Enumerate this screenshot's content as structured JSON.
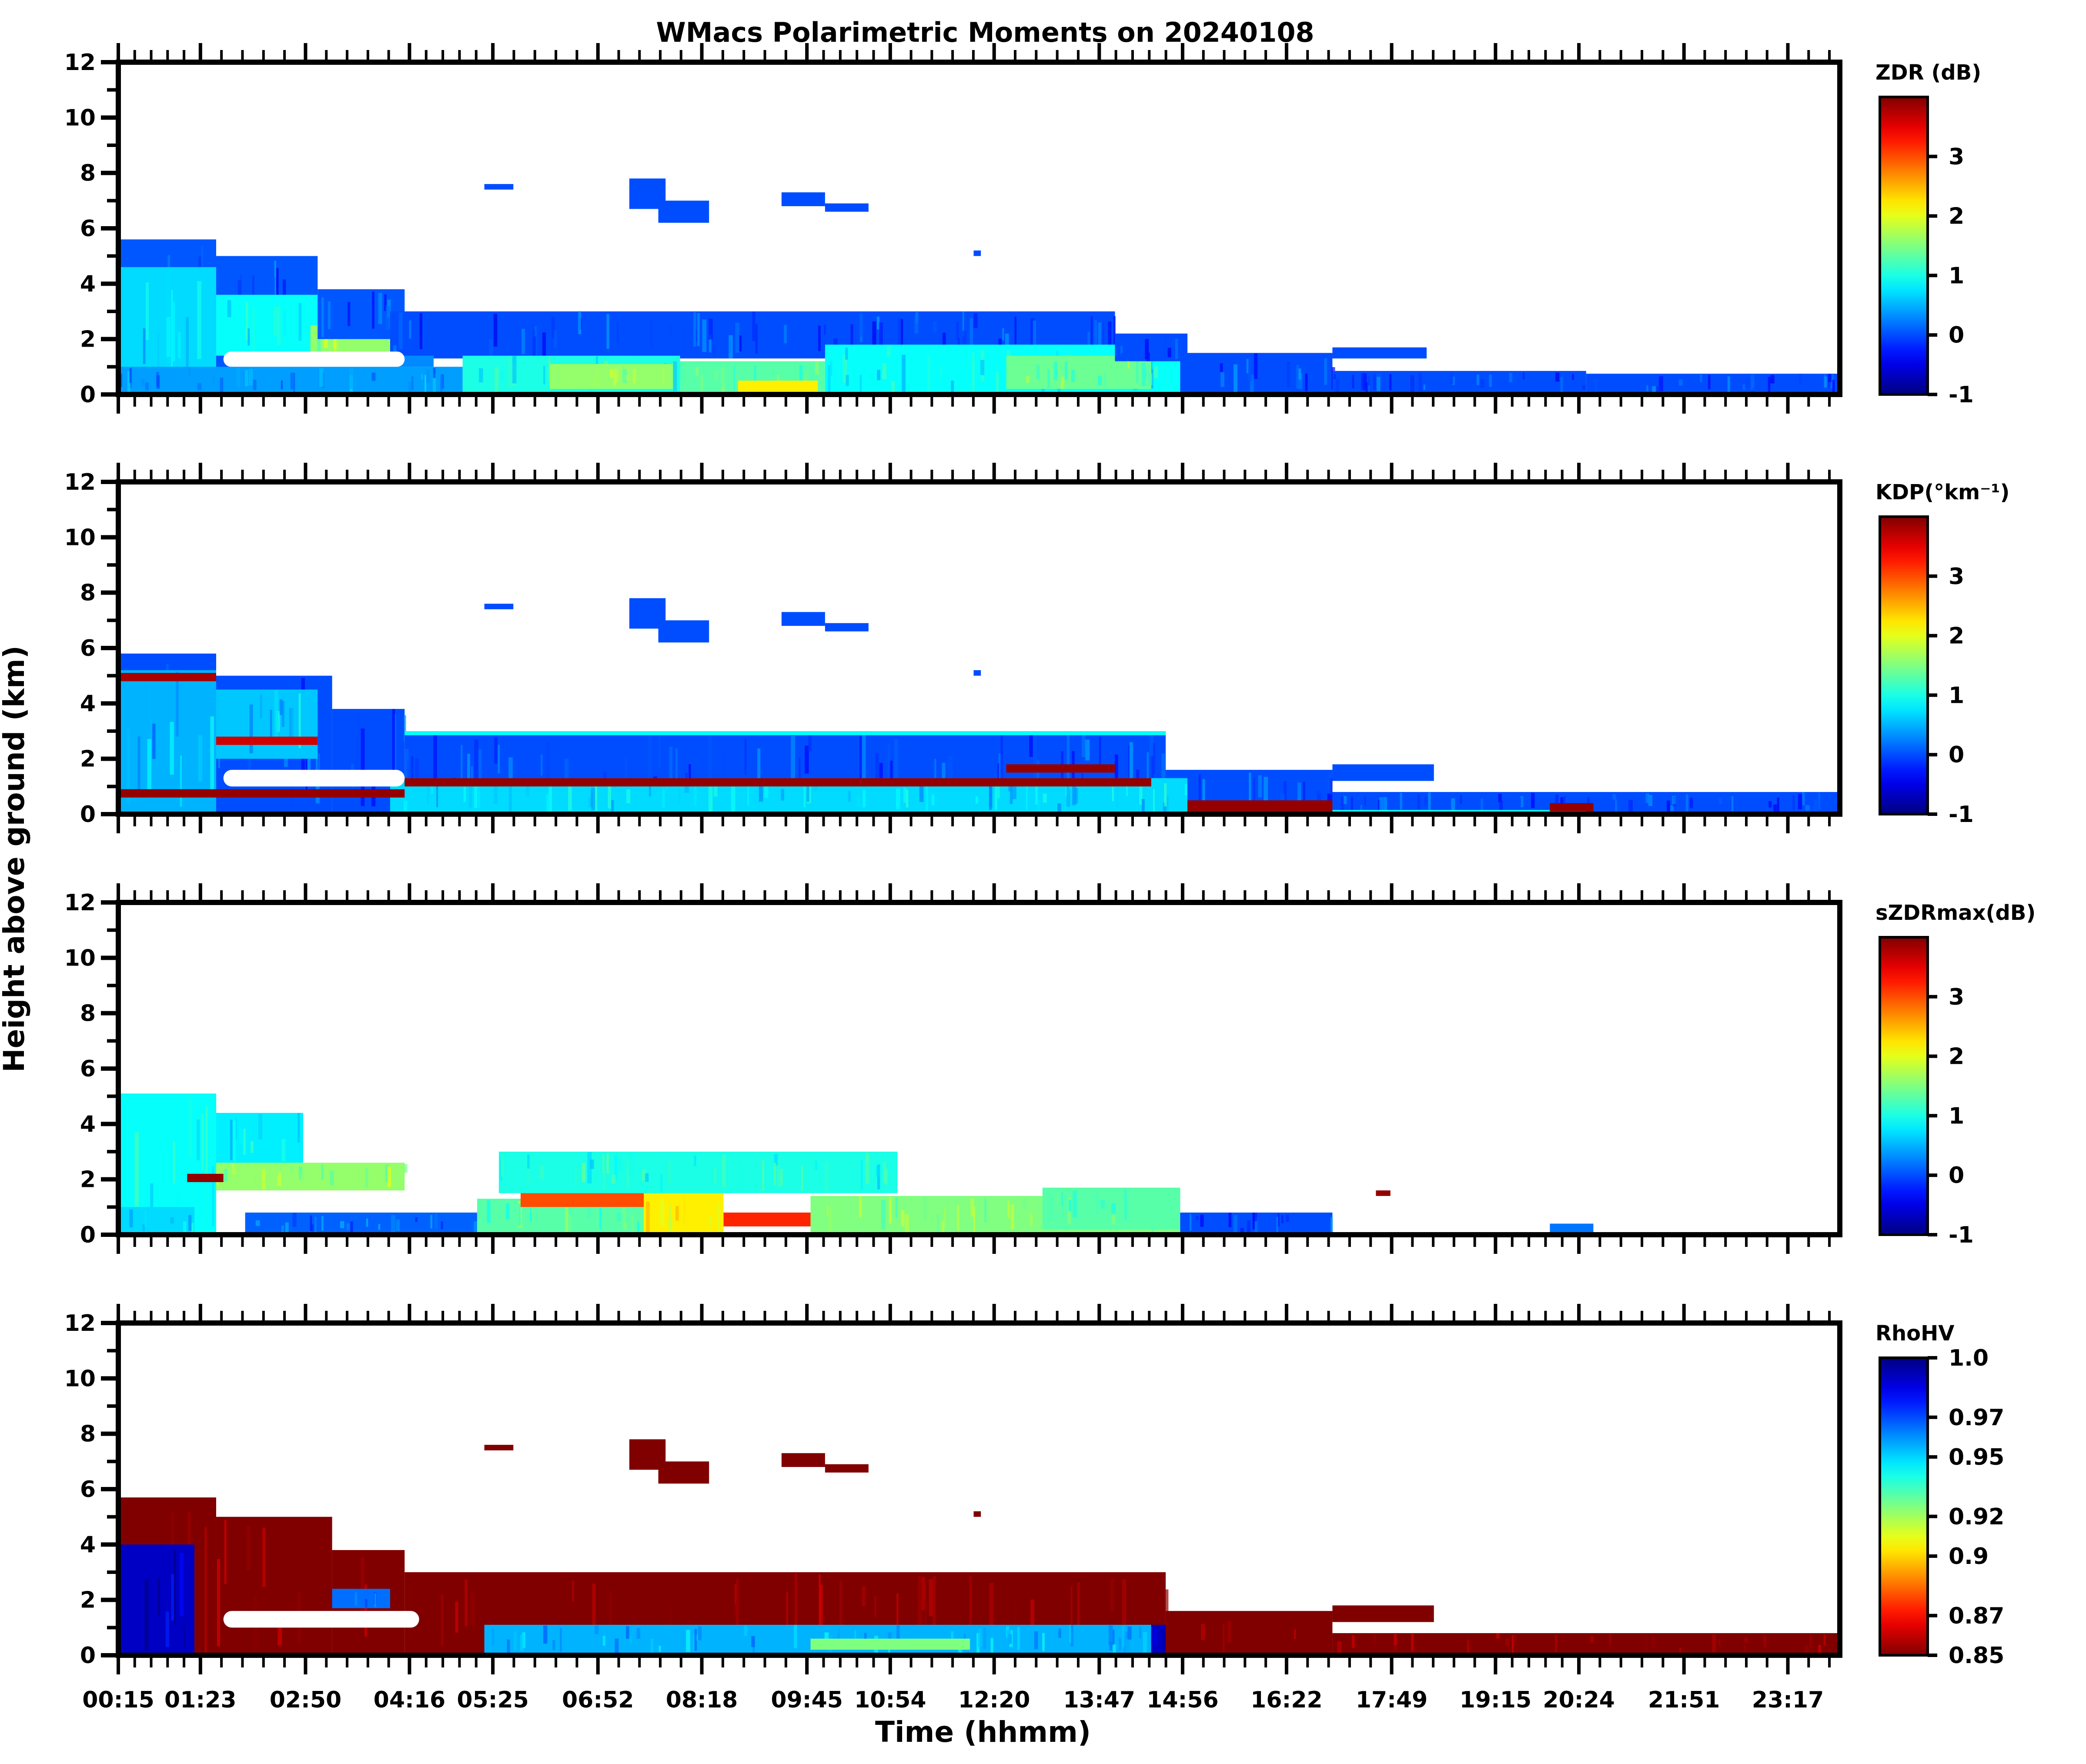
{
  "chart_data": {
    "type": "heatmap",
    "title": "WMacs Polarimetric Moments on 20240108",
    "xlabel": "Time (hhmm)",
    "ylabel": "Height above ground (km)",
    "xlim_hours": [
      0.25,
      24.0
    ],
    "x_ticks": [
      {
        "label": "00:15",
        "hour": 0.25
      },
      {
        "label": "01:23",
        "hour": 1.383
      },
      {
        "label": "02:50",
        "hour": 2.833
      },
      {
        "label": "04:16",
        "hour": 4.267
      },
      {
        "label": "05:25",
        "hour": 5.417
      },
      {
        "label": "06:52",
        "hour": 6.867
      },
      {
        "label": "08:18",
        "hour": 8.3
      },
      {
        "label": "09:45",
        "hour": 9.75
      },
      {
        "label": "10:54",
        "hour": 10.9
      },
      {
        "label": "12:20",
        "hour": 12.333
      },
      {
        "label": "13:47",
        "hour": 13.783
      },
      {
        "label": "14:56",
        "hour": 14.933
      },
      {
        "label": "16:22",
        "hour": 16.367
      },
      {
        "label": "17:49",
        "hour": 17.817
      },
      {
        "label": "19:15",
        "hour": 19.25
      },
      {
        "label": "20:24",
        "hour": 20.4
      },
      {
        "label": "21:51",
        "hour": 21.85
      },
      {
        "label": "23:17",
        "hour": 23.283
      }
    ],
    "minor_ticks_per_interval": 4,
    "ylim": [
      0,
      12
    ],
    "y_ticks": [
      "0",
      "2",
      "4",
      "6",
      "8",
      "10",
      "12"
    ],
    "y_minor_ticks": [
      1,
      3,
      5,
      7,
      9,
      11
    ],
    "panels": [
      {
        "name": "zdr",
        "colorbar_label": "ZDR (dB)",
        "colormap": "jet",
        "vmin": -1,
        "vmax": 4,
        "cbar_ticks": [
          "-1",
          "0",
          "1",
          "2",
          "3"
        ],
        "cbar_tick_values": [
          -1,
          0,
          1,
          2,
          3
        ],
        "regions": [
          {
            "t0": 0.25,
            "t1": 1.6,
            "h0": 0,
            "h1": 5.6,
            "v": 0.05
          },
          {
            "t0": 0.25,
            "t1": 1.6,
            "h0": 0,
            "h1": 4.6,
            "v": 0.7
          },
          {
            "t0": 1.6,
            "t1": 3.0,
            "h0": 0,
            "h1": 5.0,
            "v": 0.05
          },
          {
            "t0": 1.6,
            "t1": 3.2,
            "h0": 1.4,
            "h1": 3.6,
            "v": 0.9
          },
          {
            "t0": 2.9,
            "t1": 4.0,
            "h0": 1.5,
            "h1": 2.5,
            "v": 1.6
          },
          {
            "t0": 3.0,
            "t1": 4.2,
            "h0": 2.0,
            "h1": 3.8,
            "v": 0.05
          },
          {
            "t0": 4.0,
            "t1": 14.0,
            "h0": 1.3,
            "h1": 3.0,
            "v": 0.0
          },
          {
            "t0": 2.0,
            "t1": 4.6,
            "h0": 1.0,
            "h1": 1.4,
            "v": 0.3
          },
          {
            "t0": 0.25,
            "t1": 5.0,
            "h0": 0,
            "h1": 1.0,
            "v": 0.4
          },
          {
            "t0": 5.0,
            "t1": 8.0,
            "h0": 0,
            "h1": 1.4,
            "v": 1.0
          },
          {
            "t0": 6.2,
            "t1": 7.9,
            "h0": 0.2,
            "h1": 1.1,
            "v": 1.6
          },
          {
            "t0": 8.0,
            "t1": 10.0,
            "h0": 0,
            "h1": 1.2,
            "v": 1.3
          },
          {
            "t0": 8.8,
            "t1": 9.9,
            "h0": 0.1,
            "h1": 0.5,
            "v": 2.2
          },
          {
            "t0": 10.0,
            "t1": 14.9,
            "h0": 0,
            "h1": 1.8,
            "v": 0.9
          },
          {
            "t0": 12.5,
            "t1": 14.5,
            "h0": 0.2,
            "h1": 1.4,
            "v": 1.4
          },
          {
            "t0": 14.0,
            "t1": 15.0,
            "h0": 1.2,
            "h1": 2.2,
            "v": 0.0
          },
          {
            "t0": 14.9,
            "t1": 17.0,
            "h0": 0,
            "h1": 1.5,
            "v": 0.0
          },
          {
            "t0": 17.0,
            "t1": 18.3,
            "h0": 1.3,
            "h1": 1.7,
            "v": 0.0
          },
          {
            "t0": 17.0,
            "t1": 20.5,
            "h0": 0,
            "h1": 0.85,
            "v": 0.0
          },
          {
            "t0": 20.5,
            "t1": 24.0,
            "h0": 0,
            "h1": 0.75,
            "v": 0.0
          },
          {
            "t0": 5.3,
            "t1": 5.7,
            "h0": 7.4,
            "h1": 7.6,
            "v": 0.0
          },
          {
            "t0": 7.3,
            "t1": 7.8,
            "h0": 6.7,
            "h1": 7.8,
            "v": 0.0
          },
          {
            "t0": 7.7,
            "t1": 8.4,
            "h0": 6.2,
            "h1": 7.0,
            "v": 0.0
          },
          {
            "t0": 9.4,
            "t1": 10.0,
            "h0": 6.8,
            "h1": 7.3,
            "v": 0.0
          },
          {
            "t0": 10.0,
            "t1": 10.6,
            "h0": 6.6,
            "h1": 6.9,
            "v": 0.0
          },
          {
            "t0": 12.05,
            "t1": 12.15,
            "h0": 5.0,
            "h1": 5.2,
            "v": 0.0
          }
        ]
      },
      {
        "name": "kdp",
        "colorbar_label": "KDP(°km⁻¹)",
        "colormap": "jet",
        "vmin": -1,
        "vmax": 4,
        "cbar_ticks": [
          "-1",
          "0",
          "1",
          "2",
          "3"
        ],
        "cbar_tick_values": [
          -1,
          0,
          1,
          2,
          3
        ],
        "regions": [
          {
            "t0": 0.25,
            "t1": 1.6,
            "h0": 0,
            "h1": 5.8,
            "v": 0.0
          },
          {
            "t0": 0.25,
            "t1": 1.6,
            "h0": 0,
            "h1": 5.2,
            "v": 0.5
          },
          {
            "t0": 1.6,
            "t1": 3.2,
            "h0": 0,
            "h1": 5.0,
            "v": 0.0
          },
          {
            "t0": 1.6,
            "t1": 3.0,
            "h0": 2.0,
            "h1": 4.5,
            "v": 0.6
          },
          {
            "t0": 3.2,
            "t1": 4.2,
            "h0": 0,
            "h1": 3.8,
            "v": 0.0
          },
          {
            "t0": 4.2,
            "t1": 14.7,
            "h0": 0,
            "h1": 3.0,
            "v": 0.0
          },
          {
            "t0": 4.2,
            "t1": 14.7,
            "h0": 2.85,
            "h1": 3.0,
            "v": 0.9
          },
          {
            "t0": 14.7,
            "t1": 17.0,
            "h0": 0,
            "h1": 1.6,
            "v": 0.0
          },
          {
            "t0": 17.0,
            "t1": 18.4,
            "h0": 1.2,
            "h1": 1.8,
            "v": 0.0
          },
          {
            "t0": 17.0,
            "t1": 24.0,
            "h0": 0,
            "h1": 0.8,
            "v": 0.0
          },
          {
            "t0": 17.0,
            "t1": 20.5,
            "h0": 0.05,
            "h1": 0.15,
            "v": 1.0
          },
          {
            "t0": 4.0,
            "t1": 15.0,
            "h0": 0,
            "h1": 1.3,
            "v": 0.7
          },
          {
            "t0": 4.2,
            "t1": 14.5,
            "h0": 1.0,
            "h1": 1.3,
            "v": 3.9
          },
          {
            "t0": 0.25,
            "t1": 4.2,
            "h0": 0.6,
            "h1": 0.9,
            "v": 3.9
          },
          {
            "t0": 0.25,
            "t1": 1.6,
            "h0": 4.8,
            "h1": 5.1,
            "v": 3.8
          },
          {
            "t0": 1.6,
            "t1": 3.0,
            "h0": 2.5,
            "h1": 2.8,
            "v": 3.6
          },
          {
            "t0": 12.5,
            "t1": 14.0,
            "h0": 1.5,
            "h1": 1.8,
            "v": 3.9
          },
          {
            "t0": 15.0,
            "t1": 17.0,
            "h0": 0.1,
            "h1": 0.5,
            "v": 3.9
          },
          {
            "t0": 20.0,
            "t1": 20.6,
            "h0": 0.1,
            "h1": 0.4,
            "v": 3.9
          },
          {
            "t0": 5.3,
            "t1": 5.7,
            "h0": 7.4,
            "h1": 7.6,
            "v": 0.0
          },
          {
            "t0": 7.3,
            "t1": 7.8,
            "h0": 6.7,
            "h1": 7.8,
            "v": 0.0
          },
          {
            "t0": 7.7,
            "t1": 8.4,
            "h0": 6.2,
            "h1": 7.0,
            "v": 0.0
          },
          {
            "t0": 9.4,
            "t1": 10.0,
            "h0": 6.8,
            "h1": 7.3,
            "v": 0.0
          },
          {
            "t0": 10.0,
            "t1": 10.6,
            "h0": 6.6,
            "h1": 6.9,
            "v": 0.0
          },
          {
            "t0": 12.05,
            "t1": 12.15,
            "h0": 5.0,
            "h1": 5.2,
            "v": 0.0
          }
        ],
        "holes": [
          {
            "t0": 1.7,
            "t1": 4.2,
            "h0": 1.0,
            "h1": 1.6
          }
        ]
      },
      {
        "name": "szdrmax",
        "colorbar_label": "sZDRmax(dB)",
        "colormap": "jet",
        "vmin": -1,
        "vmax": 4,
        "cbar_ticks": [
          "-1",
          "0",
          "1",
          "2",
          "3"
        ],
        "cbar_tick_values": [
          -1,
          0,
          1,
          2,
          3
        ],
        "regions": [
          {
            "t0": 0.25,
            "t1": 1.6,
            "h0": 0,
            "h1": 5.1,
            "v": 0.9
          },
          {
            "t0": 1.6,
            "t1": 2.8,
            "h0": 2.5,
            "h1": 4.4,
            "v": 0.8
          },
          {
            "t0": 1.6,
            "t1": 4.2,
            "h0": 1.6,
            "h1": 2.6,
            "v": 1.6
          },
          {
            "t0": 1.2,
            "t1": 1.7,
            "h0": 1.9,
            "h1": 2.2,
            "v": 3.9
          },
          {
            "t0": 0.25,
            "t1": 1.3,
            "h0": 0,
            "h1": 1.0,
            "v": 0.7
          },
          {
            "t0": 2.0,
            "t1": 5.2,
            "h0": 0,
            "h1": 0.8,
            "v": 0.1
          },
          {
            "t0": 5.2,
            "t1": 7.5,
            "h0": 0,
            "h1": 1.3,
            "v": 1.3
          },
          {
            "t0": 5.8,
            "t1": 7.5,
            "h0": 1.0,
            "h1": 1.6,
            "v": 3.0
          },
          {
            "t0": 7.5,
            "t1": 8.6,
            "h0": 0,
            "h1": 1.6,
            "v": 2.2
          },
          {
            "t0": 8.6,
            "t1": 9.8,
            "h0": 0.3,
            "h1": 0.8,
            "v": 3.2
          },
          {
            "t0": 9.8,
            "t1": 14.9,
            "h0": 0,
            "h1": 1.4,
            "v": 1.5
          },
          {
            "t0": 13.0,
            "t1": 14.9,
            "h0": 0.2,
            "h1": 1.7,
            "v": 1.3
          },
          {
            "t0": 14.9,
            "t1": 17.0,
            "h0": 0,
            "h1": 0.8,
            "v": 0.0
          },
          {
            "t0": 17.6,
            "t1": 17.8,
            "h0": 1.4,
            "h1": 1.6,
            "v": 3.9
          },
          {
            "t0": 20.0,
            "t1": 20.6,
            "h0": 0,
            "h1": 0.4,
            "v": 0.2
          },
          {
            "t0": 5.5,
            "t1": 11.0,
            "h0": 1.5,
            "h1": 3.0,
            "v": 1.0
          }
        ]
      },
      {
        "name": "rhohv",
        "colorbar_label": "RhoHV",
        "colormap": "jet_r",
        "vmin": 0.85,
        "vmax": 1.0,
        "cbar_ticks": [
          "0.85",
          "0.87",
          "0.9",
          "0.92",
          "0.95",
          "0.97",
          "1.0"
        ],
        "cbar_tick_values": [
          0.85,
          0.87,
          0.9,
          0.92,
          0.95,
          0.97,
          1.0
        ],
        "regions": [
          {
            "t0": 0.25,
            "t1": 1.6,
            "h0": 0,
            "h1": 5.7,
            "v": 0.85
          },
          {
            "t0": 0.25,
            "t1": 1.3,
            "h0": 0,
            "h1": 4.0,
            "v": 0.99
          },
          {
            "t0": 1.6,
            "t1": 3.2,
            "h0": 0,
            "h1": 5.0,
            "v": 0.85
          },
          {
            "t0": 3.2,
            "t1": 4.2,
            "h0": 0,
            "h1": 3.8,
            "v": 0.85
          },
          {
            "t0": 3.2,
            "t1": 4.0,
            "h0": 1.7,
            "h1": 2.4,
            "v": 0.965
          },
          {
            "t0": 4.2,
            "t1": 14.7,
            "h0": 0,
            "h1": 3.0,
            "v": 0.85
          },
          {
            "t0": 5.3,
            "t1": 14.5,
            "h0": 0,
            "h1": 1.1,
            "v": 0.955
          },
          {
            "t0": 9.8,
            "t1": 12.0,
            "h0": 0.2,
            "h1": 0.6,
            "v": 0.925
          },
          {
            "t0": 14.5,
            "t1": 15.5,
            "h0": 0,
            "h1": 1.1,
            "v": 0.99
          },
          {
            "t0": 14.7,
            "t1": 17.0,
            "h0": 0,
            "h1": 1.6,
            "v": 0.85
          },
          {
            "t0": 17.0,
            "t1": 18.4,
            "h0": 1.2,
            "h1": 1.8,
            "v": 0.85
          },
          {
            "t0": 17.0,
            "t1": 24.0,
            "h0": 0,
            "h1": 0.8,
            "v": 0.85
          },
          {
            "t0": 5.3,
            "t1": 5.7,
            "h0": 7.4,
            "h1": 7.6,
            "v": 0.85
          },
          {
            "t0": 7.3,
            "t1": 7.8,
            "h0": 6.7,
            "h1": 7.8,
            "v": 0.85
          },
          {
            "t0": 7.7,
            "t1": 8.4,
            "h0": 6.2,
            "h1": 7.0,
            "v": 0.85
          },
          {
            "t0": 9.4,
            "t1": 10.0,
            "h0": 6.8,
            "h1": 7.3,
            "v": 0.85
          },
          {
            "t0": 10.0,
            "t1": 10.6,
            "h0": 6.6,
            "h1": 6.9,
            "v": 0.85
          },
          {
            "t0": 12.05,
            "t1": 12.15,
            "h0": 5.0,
            "h1": 5.2,
            "v": 0.85
          }
        ],
        "holes": [
          {
            "t0": 1.7,
            "t1": 4.4,
            "h0": 1.0,
            "h1": 1.6
          }
        ]
      }
    ]
  }
}
